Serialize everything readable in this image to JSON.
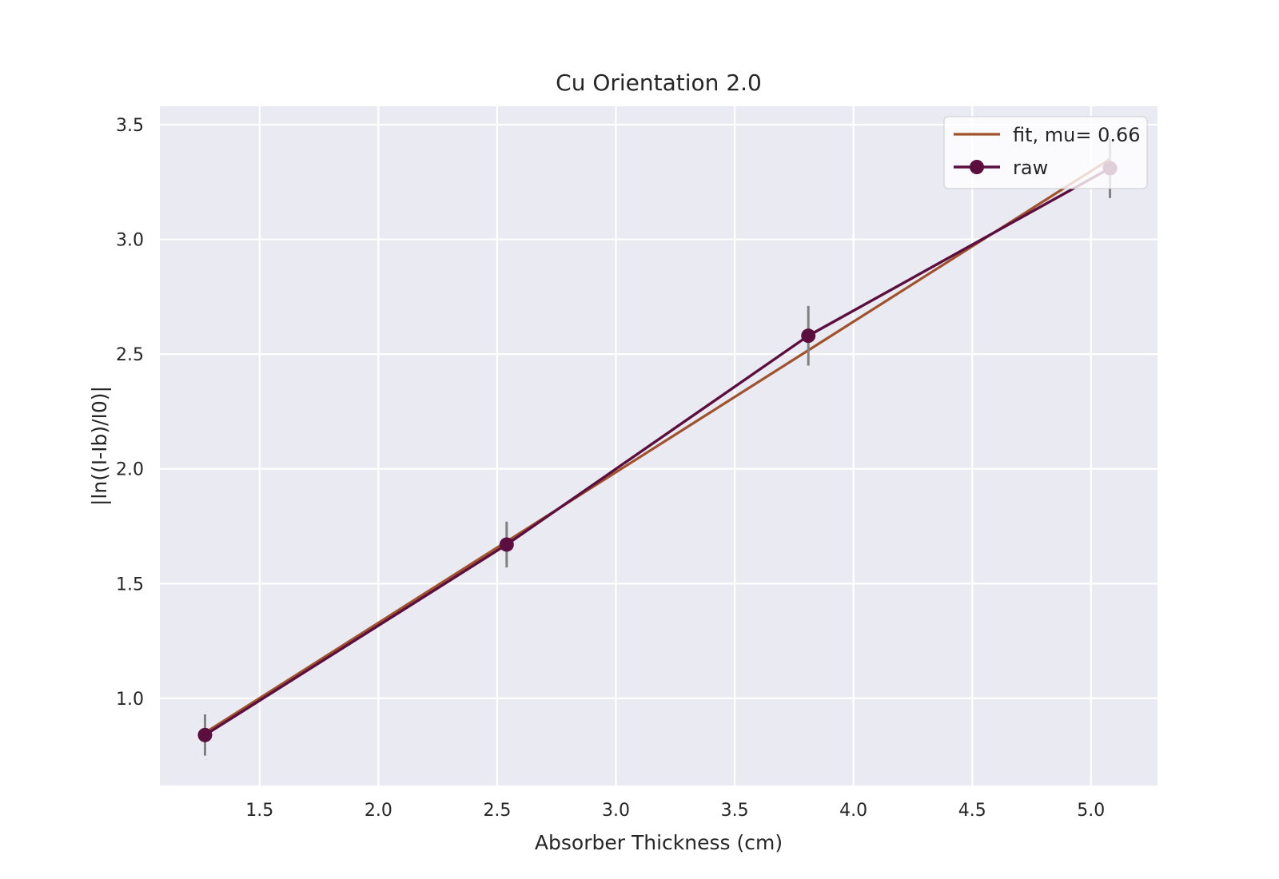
{
  "chart_data": {
    "type": "line",
    "title": "Cu Orientation 2.0",
    "xlabel": "Absorber Thickness (cm)",
    "ylabel": "|ln((I-Ib)/I0)|",
    "xlim": [
      1.08,
      5.28
    ],
    "ylim": [
      0.62,
      3.58
    ],
    "xticks": [
      1.5,
      2.0,
      2.5,
      3.0,
      3.5,
      4.0,
      4.5,
      5.0
    ],
    "xtick_labels": [
      "1.5",
      "2.0",
      "2.5",
      "3.0",
      "3.5",
      "4.0",
      "4.5",
      "5.0"
    ],
    "yticks": [
      1.0,
      1.5,
      2.0,
      2.5,
      3.0,
      3.5
    ],
    "ytick_labels": [
      "1.0",
      "1.5",
      "2.0",
      "2.5",
      "3.0",
      "3.5"
    ],
    "grid": true,
    "legend_position": "top-right",
    "colors": {
      "background": "#eaeaf2",
      "grid": "#ffffff",
      "fit": "#a0522d",
      "raw": "#5c0f3e",
      "errorbar": "#808080"
    },
    "series": [
      {
        "name": "fit, mu= 0.66",
        "style": "line",
        "x": [
          1.27,
          5.08
        ],
        "y": [
          0.85,
          3.35
        ]
      },
      {
        "name": "raw",
        "style": "line-marker",
        "x": [
          1.27,
          2.54,
          3.81,
          5.08
        ],
        "y": [
          0.84,
          1.67,
          2.58,
          3.31
        ],
        "yerr": [
          0.09,
          0.1,
          0.13,
          0.13
        ]
      }
    ]
  }
}
